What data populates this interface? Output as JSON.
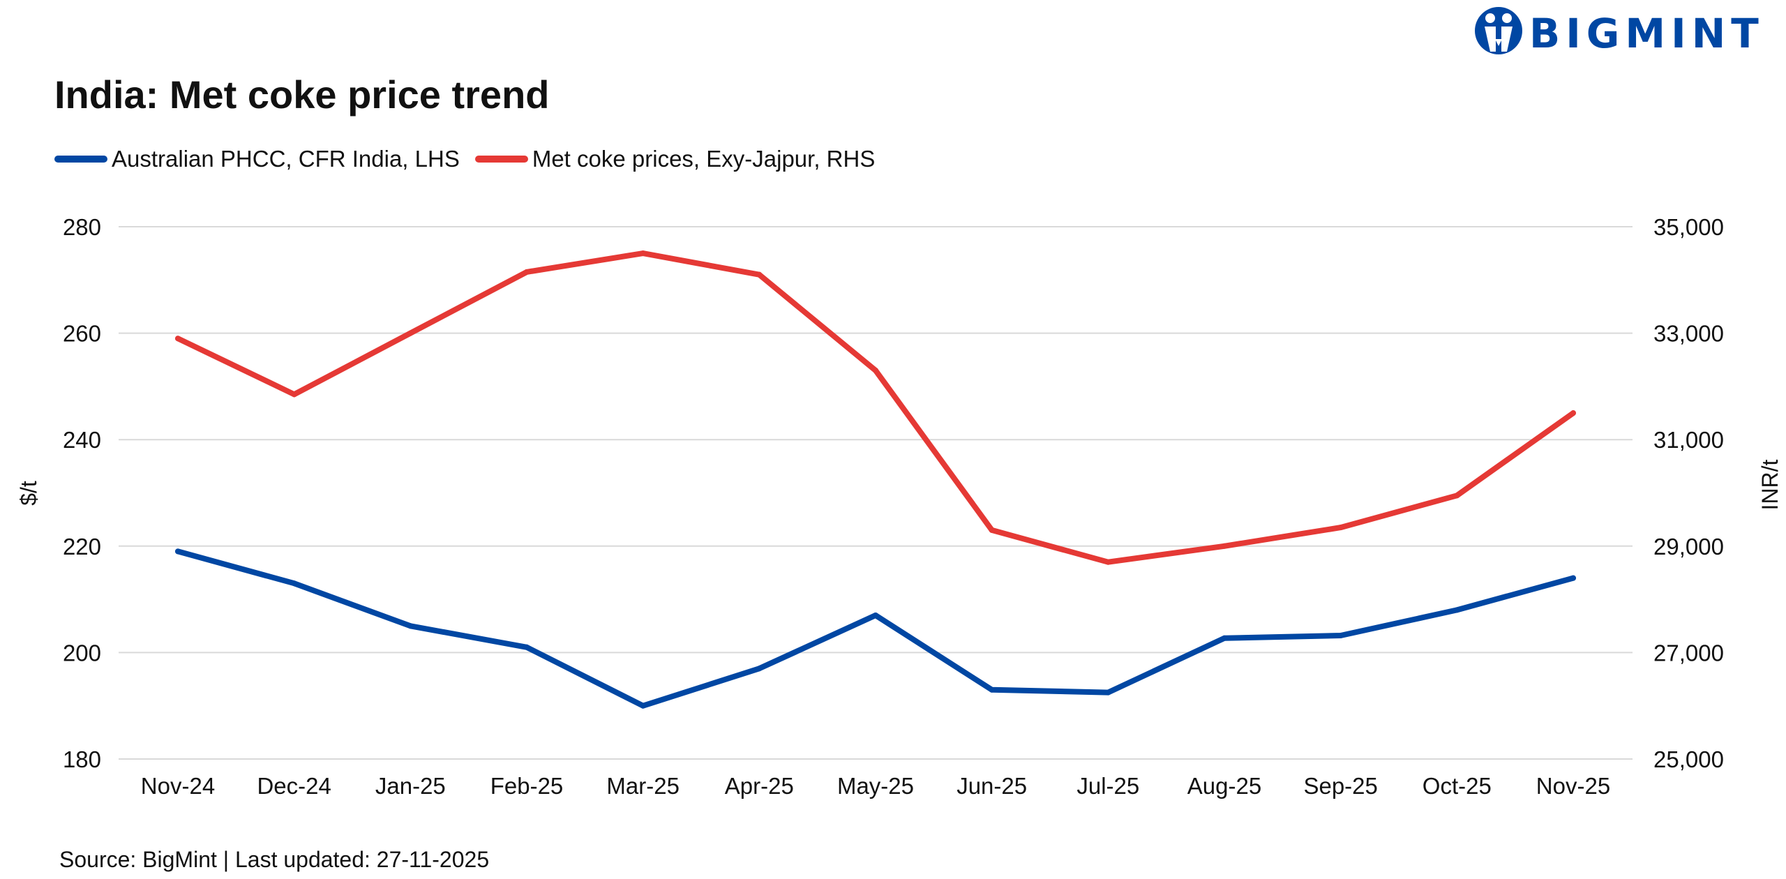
{
  "brand": {
    "logo_text": "BIGMINT",
    "logo_icon": "bigmint-people-logo-icon",
    "brand_color": "#0047A3"
  },
  "source_note": "Source: BigMint | Last updated: 27-11-2025",
  "chart_data": {
    "type": "line",
    "title": "India: Met coke price trend",
    "categories": [
      "Nov-24",
      "Dec-24",
      "Jan-25",
      "Feb-25",
      "Mar-25",
      "Apr-25",
      "May-25",
      "Jun-25",
      "Jul-25",
      "Aug-25",
      "Sep-25",
      "Oct-25",
      "Nov-25"
    ],
    "series": [
      {
        "name": "Australian PHCC, CFR India, LHS",
        "axis": "left",
        "color": "#0047A3",
        "values": [
          219,
          213,
          205,
          201,
          190,
          197,
          207,
          193,
          192.5,
          202.7,
          203.2,
          208,
          214
        ]
      },
      {
        "name": "Met coke prices, Exy-Jajpur, RHS",
        "axis": "right",
        "color": "#E53935",
        "values": [
          32900,
          31850,
          33000,
          34150,
          34500,
          34100,
          32300,
          29300,
          28700,
          29000,
          29350,
          29950,
          31500
        ]
      }
    ],
    "ylabel_left": "$/t",
    "ylabel_right": "INR/t",
    "ylim_left": [
      180,
      280
    ],
    "yticks_left": [
      180,
      200,
      220,
      240,
      260,
      280
    ],
    "ylim_right": [
      25000,
      35000
    ],
    "yticks_right": [
      "25,000",
      "27,000",
      "29,000",
      "31,000",
      "33,000",
      "35,000"
    ],
    "yticks_right_values": [
      25000,
      27000,
      29000,
      31000,
      33000,
      35000
    ],
    "grid": true,
    "gridline_color": "#D9D9D9",
    "legend_position": "top-left"
  }
}
